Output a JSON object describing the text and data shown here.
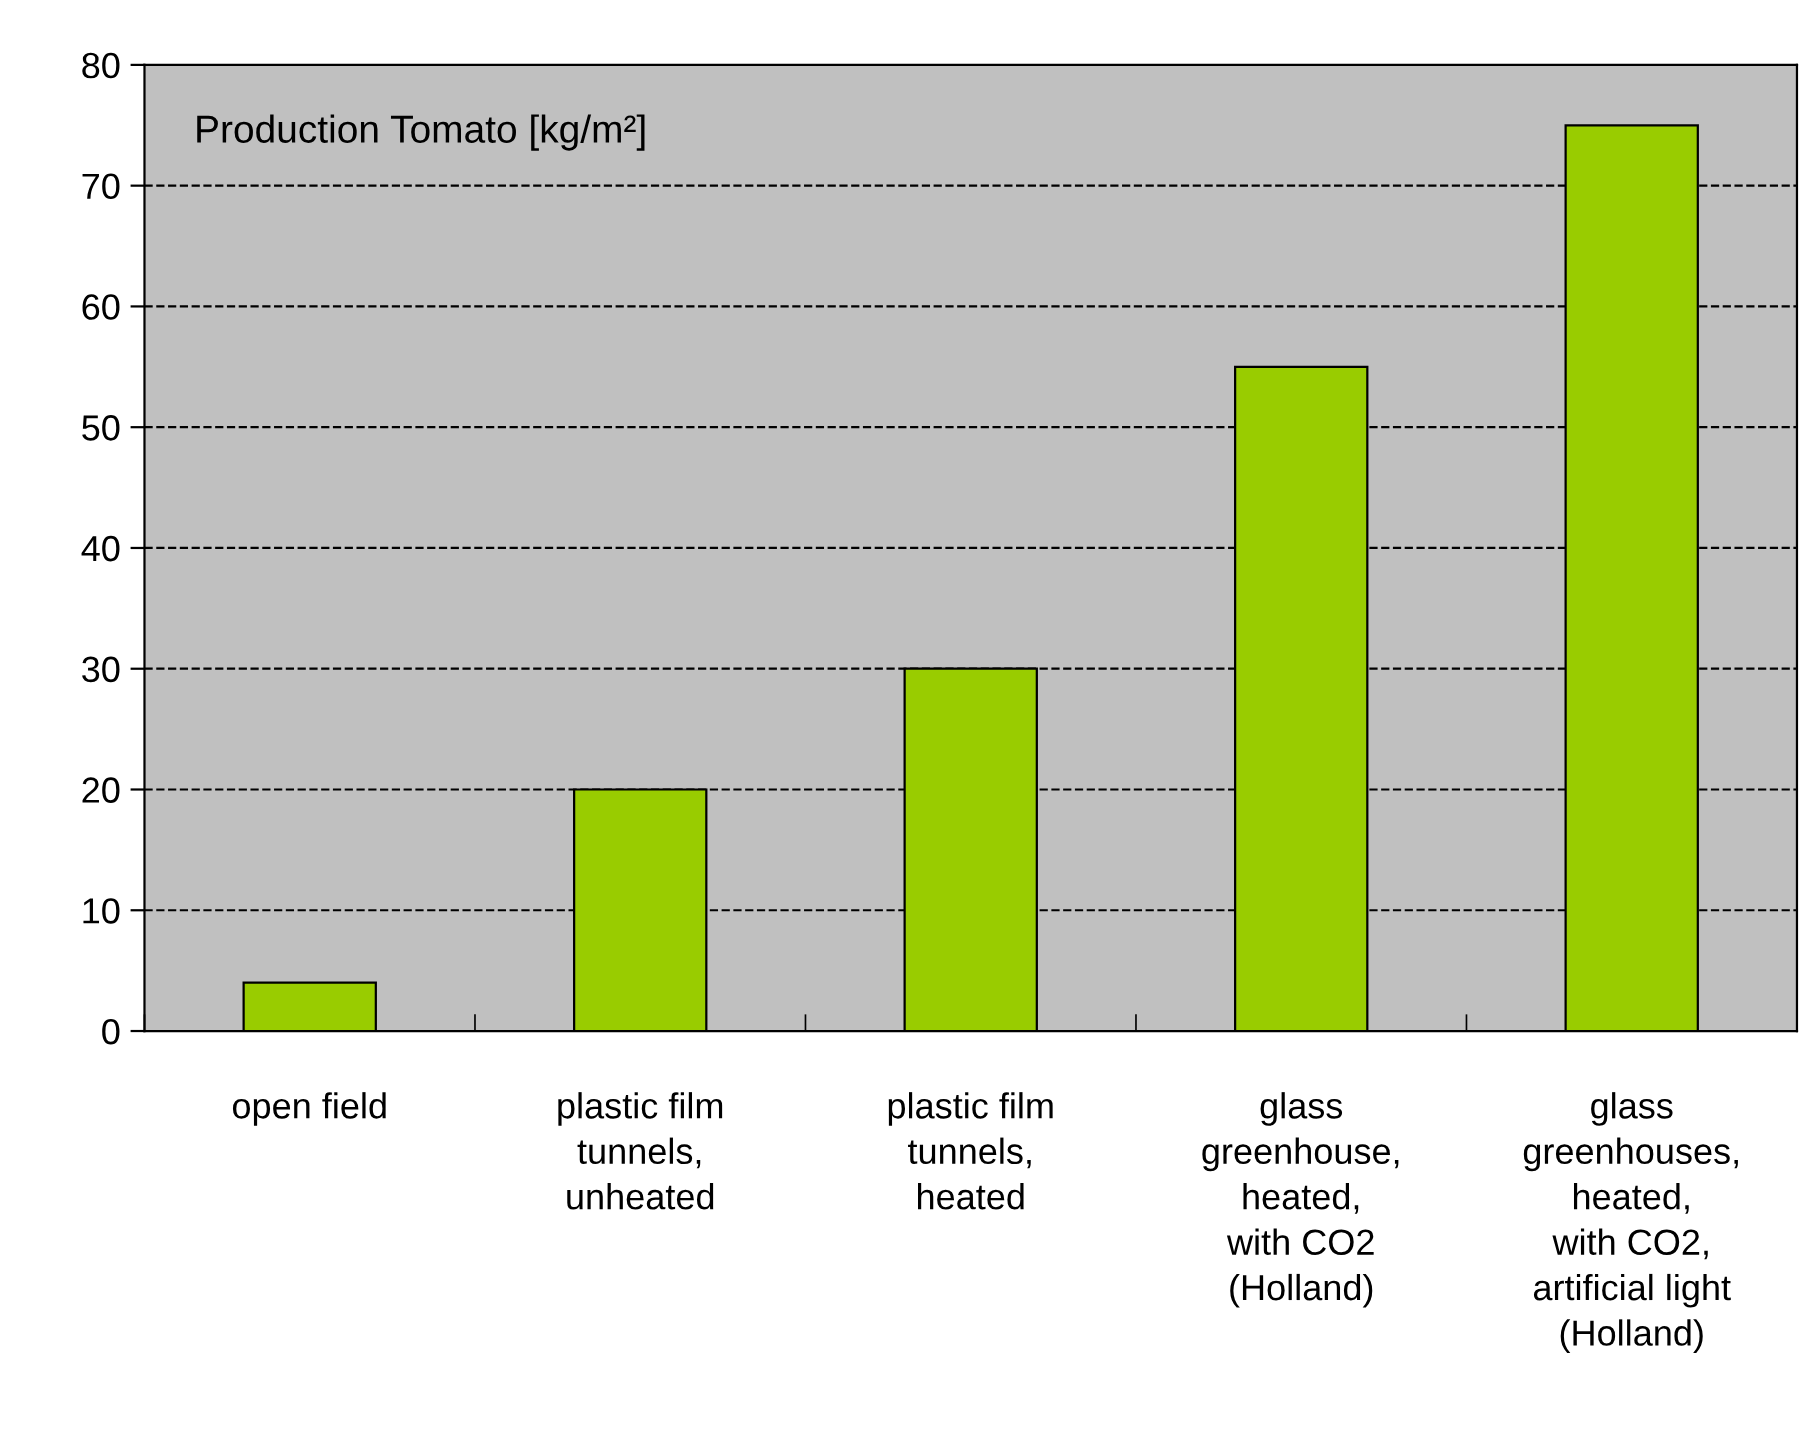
{
  "chart_data": {
    "type": "bar",
    "title": "Production Tomato [kg/m²]",
    "categories": [
      "open field",
      "plastic film\ntunnels,\nunheated",
      "plastic film\ntunnels,\nheated",
      "glass\ngreenhouse,\nheated,\nwith CO2\n(Holland)",
      "glass\ngreenhouses,\nheated,\nwith CO2,\nartificial light\n(Holland)"
    ],
    "values": [
      4,
      20,
      30,
      55,
      75
    ],
    "color": "#99cc00",
    "ylim": [
      0,
      80
    ],
    "yticks": [
      0,
      10,
      20,
      30,
      40,
      50,
      60,
      70,
      80
    ],
    "grid": "y",
    "line_style": "dashed",
    "legend": false
  }
}
